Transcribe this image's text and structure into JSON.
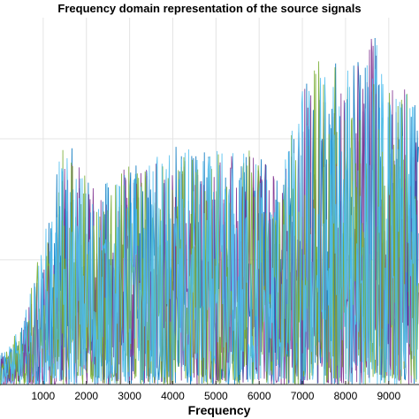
{
  "chart_data": {
    "type": "line",
    "title": "Frequency domain representation of the source signals",
    "xlabel": "Frequency",
    "ylabel": "",
    "xlim": [
      0,
      9700
    ],
    "ylim": [
      0,
      1
    ],
    "grid": true,
    "legend": "none",
    "x_ticks": [
      1000,
      2000,
      3000,
      4000,
      5000,
      6000,
      7000,
      8000,
      9000
    ],
    "x_tick_labels": [
      "1000",
      "2000",
      "3000",
      "4000",
      "5000",
      "6000",
      "7000",
      "8000",
      "9000"
    ],
    "y_gridlines": [
      0.34,
      0.67
    ],
    "num_series": 4,
    "series_colors": [
      "#0072BD",
      "#7E2F8E",
      "#77AC30",
      "#4DBEEE"
    ],
    "envelope": {
      "x": [
        0,
        500,
        1000,
        1500,
        2000,
        2500,
        3000,
        3500,
        4000,
        4500,
        5000,
        5500,
        6000,
        6500,
        7000,
        7500,
        8000,
        8500,
        8700,
        9000,
        9500,
        9700
      ],
      "peak": [
        0.08,
        0.16,
        0.4,
        0.68,
        0.58,
        0.56,
        0.6,
        0.62,
        0.66,
        0.64,
        0.64,
        0.66,
        0.66,
        0.58,
        0.84,
        0.9,
        0.86,
        0.92,
        0.98,
        0.82,
        0.8,
        0.8
      ]
    }
  }
}
